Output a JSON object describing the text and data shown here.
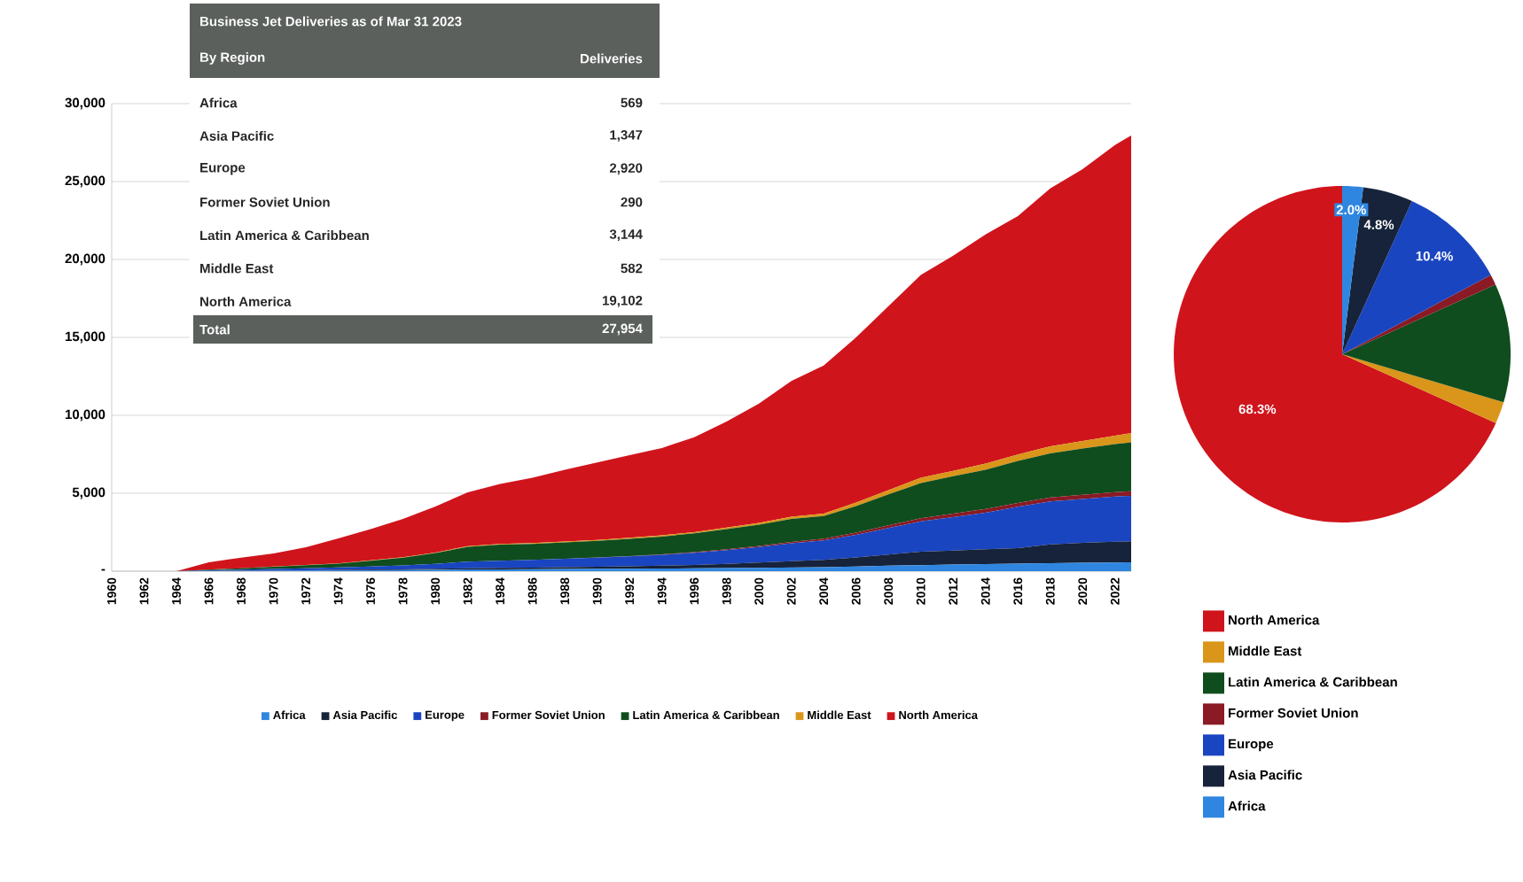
{
  "chart_data": [
    {
      "type": "area",
      "stacked": true,
      "title": "Business Jet Deliveries as of Mar 31 2023",
      "annotations": [
        "By Region",
        "Deliveries",
        "Africa",
        "569",
        "Asia Pacific",
        "1,347",
        "Europe",
        "2,920",
        "Former Soviet Union",
        "290",
        "Latin America & Caribbean",
        "3,144",
        "Middle East",
        "582",
        "North America",
        "19,102",
        "Total",
        "27,954"
      ],
      "x": [
        1960,
        1962,
        1964,
        1966,
        1968,
        1970,
        1972,
        1974,
        1976,
        1978,
        1980,
        1982,
        1984,
        1986,
        1988,
        1990,
        1992,
        1994,
        1996,
        1998,
        2000,
        2002,
        2004,
        2006,
        2008,
        2010,
        2012,
        2014,
        2016,
        2018,
        2020,
        2022,
        2023
      ],
      "series": [
        {
          "name": "Africa",
          "color": "#2f86e0",
          "values": [
            0,
            0,
            0,
            10,
            20,
            30,
            40,
            50,
            60,
            70,
            90,
            110,
            120,
            130,
            140,
            150,
            160,
            170,
            180,
            200,
            220,
            240,
            260,
            300,
            350,
            390,
            420,
            450,
            480,
            510,
            540,
            560,
            569
          ]
        },
        {
          "name": "Asia Pacific",
          "color": "#16233a",
          "values": [
            0,
            0,
            0,
            5,
            10,
            15,
            20,
            30,
            40,
            50,
            60,
            80,
            90,
            100,
            110,
            130,
            150,
            180,
            220,
            270,
            330,
            400,
            470,
            580,
            720,
            860,
            900,
            950,
            1000,
            1210,
            1280,
            1330,
            1347
          ]
        },
        {
          "name": "Europe",
          "color": "#1a45c0",
          "values": [
            0,
            0,
            0,
            40,
            70,
            100,
            130,
            160,
            200,
            250,
            320,
            420,
            460,
            500,
            540,
            590,
            640,
            700,
            780,
            880,
            1000,
            1150,
            1250,
            1450,
            1700,
            1950,
            2150,
            2350,
            2650,
            2750,
            2810,
            2900,
            2920
          ]
        },
        {
          "name": "Former Soviet Union",
          "color": "#8a1a24",
          "values": [
            0,
            0,
            0,
            0,
            0,
            0,
            0,
            0,
            0,
            0,
            0,
            0,
            0,
            0,
            0,
            10,
            20,
            30,
            40,
            50,
            70,
            90,
            110,
            140,
            170,
            200,
            220,
            240,
            250,
            265,
            275,
            285,
            290
          ]
        },
        {
          "name": "Latin America & Caribbean",
          "color": "#0f4d1e",
          "values": [
            0,
            0,
            0,
            40,
            80,
            140,
            190,
            240,
            370,
            500,
            690,
            950,
            1030,
            1020,
            1050,
            1060,
            1110,
            1140,
            1210,
            1300,
            1360,
            1470,
            1440,
            1700,
            1990,
            2250,
            2400,
            2520,
            2690,
            2825,
            2965,
            3075,
            3144
          ]
        },
        {
          "name": "Middle East",
          "color": "#d9961a",
          "values": [
            0,
            0,
            0,
            5,
            10,
            15,
            20,
            20,
            30,
            30,
            40,
            40,
            50,
            50,
            60,
            60,
            70,
            80,
            70,
            100,
            120,
            150,
            170,
            230,
            270,
            350,
            350,
            390,
            420,
            450,
            480,
            550,
            582
          ]
        },
        {
          "name": "North America",
          "color": "#d0141c",
          "values": [
            0,
            0,
            0,
            470,
            680,
            840,
            1130,
            1600,
            2000,
            2450,
            2950,
            3450,
            3850,
            4200,
            4600,
            4980,
            5300,
            5600,
            6100,
            6800,
            7650,
            8700,
            9500,
            10600,
            11800,
            13000,
            13800,
            14700,
            15300,
            16550,
            17450,
            18650,
            19102
          ]
        }
      ],
      "xlim": [
        1960,
        2023
      ],
      "ylim": [
        0,
        30000
      ],
      "xticks": [
        1960,
        1962,
        1964,
        1966,
        1968,
        1970,
        1972,
        1974,
        1976,
        1978,
        1980,
        1982,
        1984,
        1986,
        1988,
        1990,
        1992,
        1994,
        1996,
        1998,
        2000,
        2002,
        2004,
        2006,
        2008,
        2010,
        2012,
        2014,
        2016,
        2018,
        2020,
        2022
      ],
      "yticks": [
        {
          "value": 0,
          "label": "-"
        },
        {
          "value": 5000,
          "label": "5,000"
        },
        {
          "value": 10000,
          "label": "10,000"
        },
        {
          "value": 15000,
          "label": "15,000"
        },
        {
          "value": 20000,
          "label": "20,000"
        },
        {
          "value": 25000,
          "label": "25,000"
        },
        {
          "value": 30000,
          "label": "30,000"
        }
      ],
      "grid": "y",
      "legend": "bottom"
    },
    {
      "type": "pie",
      "categories": [
        "North America",
        "Middle East",
        "Latin America & Caribbean",
        "Former Soviet Union",
        "Europe",
        "Asia Pacific",
        "Africa"
      ],
      "values": [
        68.3,
        2.1,
        11.4,
        1.0,
        10.4,
        4.8,
        2.0
      ],
      "colors": [
        "#d0141c",
        "#d9961a",
        "#0f4d1e",
        "#8a1a24",
        "#1a45c0",
        "#16233a",
        "#2f86e0"
      ],
      "value_labels": [
        "68.3%",
        null,
        null,
        null,
        "10.4%",
        "4.8%",
        "2.0%"
      ],
      "legend": "bottom"
    }
  ]
}
